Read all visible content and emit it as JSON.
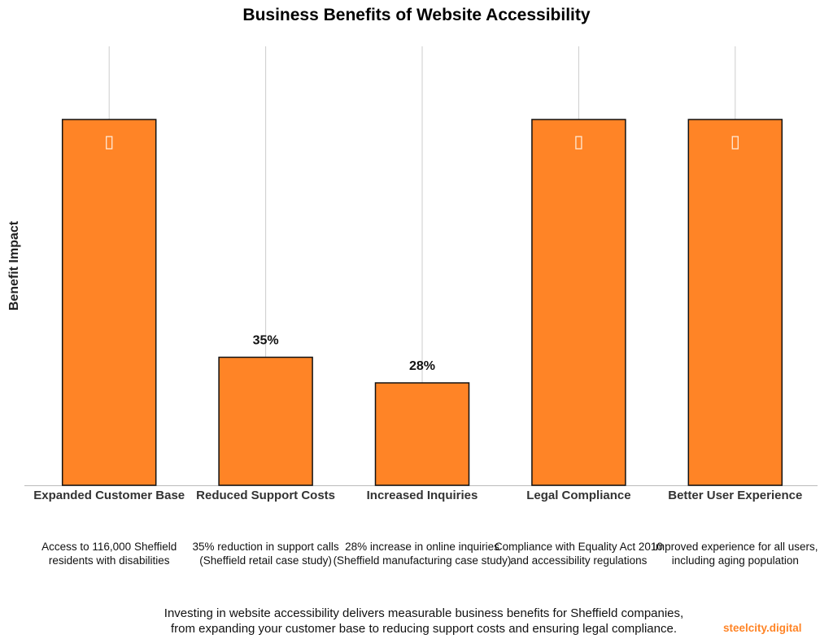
{
  "chart_data": {
    "type": "bar",
    "title": "Business Benefits of Website Accessibility",
    "xlabel": "",
    "ylabel": "Benefit Impact",
    "ylim": [
      0,
      120
    ],
    "grid": "vertical",
    "bar_color": "#ff8426",
    "categories": [
      "Expanded Customer Base",
      "Reduced Support Costs",
      "Increased Inquiries",
      "Legal Compliance",
      "Better User Experience"
    ],
    "values": [
      100,
      35,
      28,
      100,
      100
    ],
    "data_labels": [
      "",
      "35%",
      "28%",
      "",
      ""
    ],
    "icons": [
      "missing-glyph-icon",
      "",
      "",
      "missing-glyph-icon",
      "missing-glyph-icon"
    ],
    "descriptions": [
      [
        "Access to 116,000 Sheffield",
        "residents with disabilities"
      ],
      [
        "35% reduction in support calls",
        "(Sheffield retail case study)"
      ],
      [
        "28% increase in online inquiries",
        "(Sheffield manufacturing case study)"
      ],
      [
        "Compliance with Equality Act 2010",
        "and accessibility regulations"
      ],
      [
        "Improved experience for all users,",
        "including aging population"
      ]
    ]
  },
  "footer": {
    "line1": "Investing in website accessibility delivers measurable business benefits for Sheffield companies,",
    "line2": "from expanding your customer base to reducing support costs and ensuring legal compliance.",
    "brand": "steelcity.digital"
  }
}
